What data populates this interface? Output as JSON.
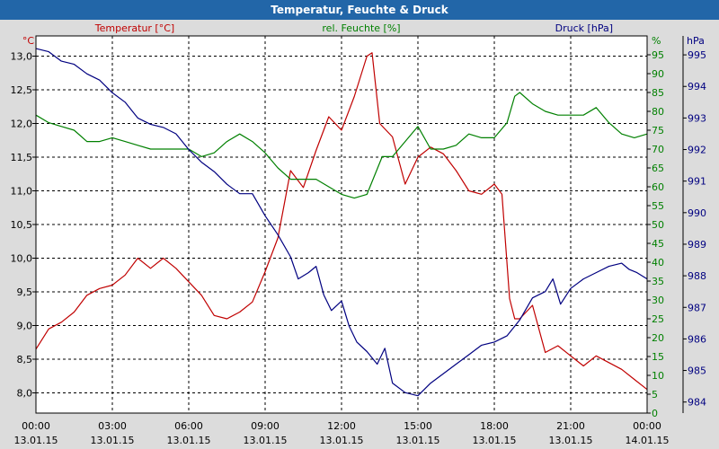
{
  "window": {
    "title": "Temperatur, Feuchte & Druck"
  },
  "chart_data": {
    "type": "line",
    "title": "Temperatur, Feuchte & Druck",
    "x_ticks": [
      {
        "h": 0,
        "time": "00:00",
        "date": "13.01.15"
      },
      {
        "h": 3,
        "time": "03:00",
        "date": "13.01.15"
      },
      {
        "h": 6,
        "time": "06:00",
        "date": "13.01.15"
      },
      {
        "h": 9,
        "time": "09:00",
        "date": "13.01.15"
      },
      {
        "h": 12,
        "time": "12:00",
        "date": "13.01.15"
      },
      {
        "h": 15,
        "time": "15:00",
        "date": "13.01.15"
      },
      {
        "h": 18,
        "time": "18:00",
        "date": "13.01.15"
      },
      {
        "h": 21,
        "time": "21:00",
        "date": "13.01.15"
      },
      {
        "h": 24,
        "time": "00:00",
        "date": "14.01.15"
      }
    ],
    "x_range": [
      0,
      24
    ],
    "grid": true,
    "axes": [
      {
        "id": "temp",
        "unit": "°C",
        "side": "left",
        "range": [
          7.7,
          13.3
        ],
        "ticks": [
          "8,0",
          "8,5",
          "9,0",
          "9,5",
          "10,0",
          "10,5",
          "11,0",
          "11,5",
          "12,0",
          "12,5",
          "13,0"
        ],
        "tick_values": [
          8.0,
          8.5,
          9.0,
          9.5,
          10.0,
          10.5,
          11.0,
          11.5,
          12.0,
          12.5,
          13.0
        ],
        "color": "#c00000"
      },
      {
        "id": "hum",
        "unit": "%",
        "side": "right",
        "range": [
          0,
          100
        ],
        "ticks": [
          "0",
          "5",
          "10",
          "15",
          "20",
          "25",
          "30",
          "35",
          "40",
          "45",
          "50",
          "55",
          "60",
          "65",
          "70",
          "75",
          "80",
          "85",
          "90",
          "95"
        ],
        "tick_values": [
          0,
          5,
          10,
          15,
          20,
          25,
          30,
          35,
          40,
          45,
          50,
          55,
          60,
          65,
          70,
          75,
          80,
          85,
          90,
          95
        ],
        "color": "#008000"
      },
      {
        "id": "press",
        "unit": "hPa",
        "side": "right",
        "range": [
          983.65,
          995.6
        ],
        "ticks": [
          "984",
          "985",
          "986",
          "987",
          "988",
          "989",
          "990",
          "991",
          "992",
          "993",
          "994",
          "995"
        ],
        "tick_values": [
          984,
          985,
          986,
          987,
          988,
          989,
          990,
          991,
          992,
          993,
          994,
          995
        ],
        "color": "#000080"
      }
    ],
    "series": [
      {
        "name": "Temperatur [°C]",
        "axis": "temp",
        "color": "#c00000",
        "x": [
          0,
          0.5,
          1,
          1.5,
          2,
          2.5,
          3,
          3.5,
          4,
          4.5,
          5,
          5.5,
          6,
          6.5,
          7,
          7.5,
          8,
          8.5,
          9,
          9.5,
          10,
          10.5,
          11,
          11.5,
          12,
          12.5,
          13,
          13.2,
          13.5,
          14,
          14.5,
          15,
          15.5,
          16,
          16.5,
          17,
          17.5,
          18,
          18.3,
          18.6,
          18.8,
          19,
          19.5,
          20,
          20.5,
          21,
          21.5,
          22,
          22.5,
          23,
          23.5,
          24
        ],
        "values": [
          8.65,
          8.95,
          9.05,
          9.2,
          9.45,
          9.55,
          9.6,
          9.75,
          10.0,
          9.85,
          10.0,
          9.85,
          9.65,
          9.45,
          9.15,
          9.1,
          9.2,
          9.35,
          9.8,
          10.3,
          11.3,
          11.05,
          11.6,
          12.1,
          11.9,
          12.4,
          13.0,
          13.05,
          12.0,
          11.8,
          11.1,
          11.5,
          11.65,
          11.55,
          11.3,
          11.0,
          10.95,
          11.1,
          10.95,
          9.4,
          9.1,
          9.1,
          9.3,
          8.6,
          8.7,
          8.55,
          8.4,
          8.55,
          8.45,
          8.35,
          8.2,
          8.05
        ]
      },
      {
        "name": "rel. Feuchte [%]",
        "axis": "hum",
        "color": "#008000",
        "x": [
          0,
          0.5,
          1,
          1.5,
          2,
          2.5,
          3,
          3.5,
          4,
          4.5,
          5,
          5.5,
          6,
          6.5,
          7,
          7.5,
          8,
          8.5,
          9,
          9.5,
          10,
          10.5,
          11,
          11.5,
          12,
          12.5,
          13,
          13.3,
          13.6,
          14,
          14.5,
          15,
          15.5,
          16,
          16.5,
          17,
          17.5,
          18,
          18.5,
          18.8,
          19,
          19.5,
          20,
          20.5,
          21,
          21.5,
          22,
          22.5,
          23,
          23.5,
          24
        ],
        "values": [
          79,
          77,
          76,
          75,
          72,
          72,
          73,
          72,
          71,
          70,
          70,
          70,
          70,
          68,
          69,
          72,
          74,
          72,
          69,
          65,
          62,
          62,
          62,
          60,
          58,
          57,
          58,
          63,
          68,
          68,
          72,
          76,
          70,
          70,
          71,
          74,
          73,
          73,
          77,
          84,
          85,
          82,
          80,
          79,
          79,
          79,
          81,
          77,
          74,
          73,
          74
        ]
      },
      {
        "name": "Druck [hPa]",
        "axis": "press",
        "color": "#000080",
        "x": [
          0,
          0.5,
          1,
          1.5,
          2,
          2.5,
          3,
          3.5,
          4,
          4.5,
          5,
          5.5,
          6,
          6.5,
          7,
          7.5,
          8,
          8.5,
          9,
          9.5,
          10,
          10.3,
          10.7,
          11,
          11.3,
          11.6,
          12,
          12.3,
          12.6,
          13,
          13.4,
          13.7,
          14,
          14.5,
          15,
          15.5,
          16,
          16.5,
          17,
          17.5,
          18,
          18.5,
          19,
          19.5,
          20,
          20.3,
          20.6,
          21,
          21.5,
          22,
          22.5,
          23,
          23.3,
          23.6,
          24
        ],
        "values": [
          995.2,
          995.1,
          994.8,
          994.7,
          994.4,
          994.2,
          993.8,
          993.5,
          993.0,
          992.8,
          992.7,
          992.5,
          992.0,
          991.6,
          991.3,
          990.9,
          990.6,
          990.6,
          989.9,
          989.3,
          988.6,
          987.9,
          988.1,
          988.3,
          987.4,
          986.9,
          987.2,
          986.4,
          985.9,
          985.6,
          985.2,
          985.7,
          984.6,
          984.3,
          984.2,
          984.6,
          984.9,
          985.2,
          985.5,
          985.8,
          985.9,
          986.1,
          986.6,
          987.3,
          987.5,
          987.9,
          987.1,
          987.6,
          987.9,
          988.1,
          988.3,
          988.4,
          988.2,
          988.1,
          987.9
        ]
      }
    ]
  }
}
